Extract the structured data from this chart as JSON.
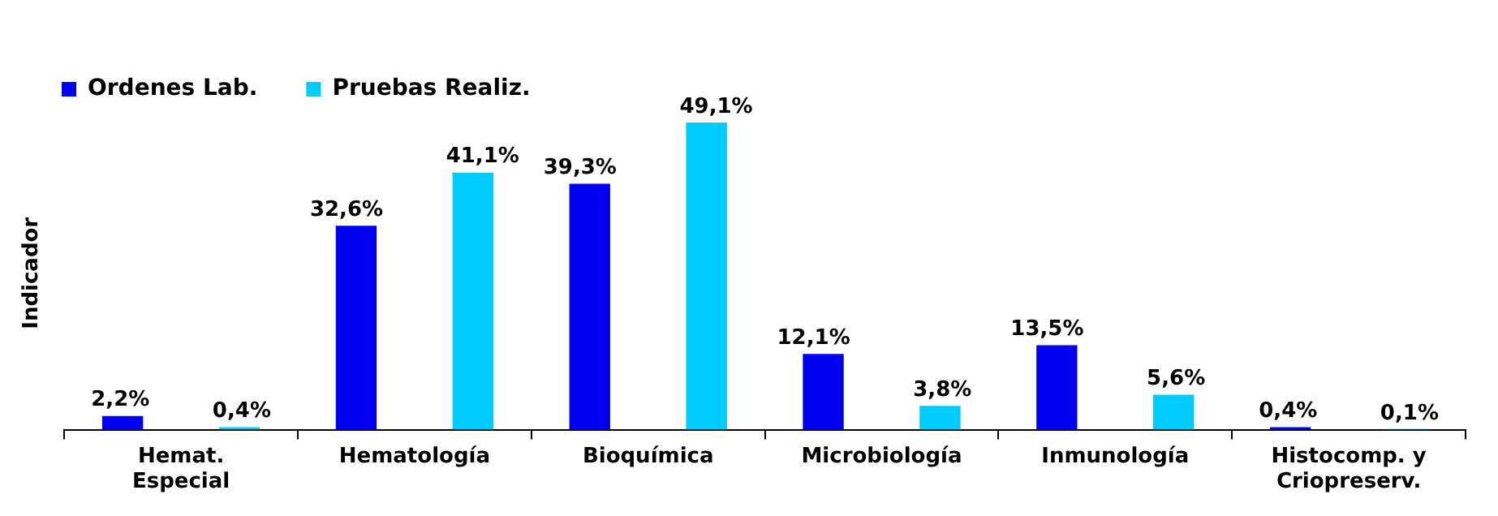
{
  "chart_data": {
    "type": "bar",
    "ylabel": "Indicador",
    "legend": "top left",
    "categories": [
      "Hemat. Especial",
      "Hematología",
      "Bioquímica",
      "Microbiología",
      "Inmunología",
      "Histocomp. y Criopreserv."
    ],
    "series": [
      {
        "name": "Ordenes Lab.",
        "color": "#0000ee",
        "values": [
          2.2,
          32.6,
          39.3,
          12.1,
          13.5,
          0.4
        ],
        "value_labels": [
          "2,2%",
          "32,6%",
          "39,3%",
          "12,1%",
          "13,5%",
          "0,4%"
        ]
      },
      {
        "name": "Pruebas Realiz.",
        "color": "#00ccff",
        "values": [
          0.4,
          41.1,
          49.1,
          3.8,
          5.6,
          0.1
        ],
        "value_labels": [
          "0,4%",
          "41,1%",
          "49,1%",
          "3,8%",
          "5,6%",
          "0,1%"
        ]
      }
    ]
  }
}
